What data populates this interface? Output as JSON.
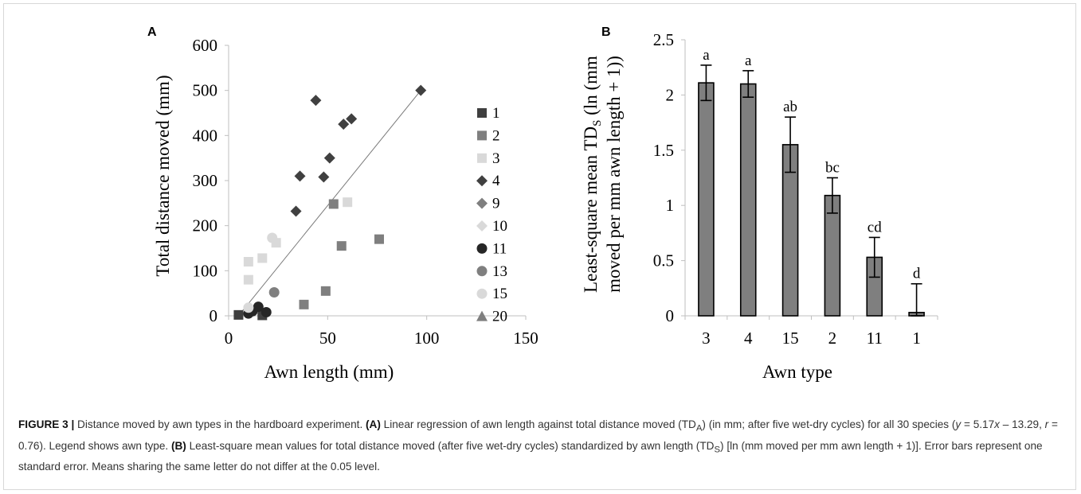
{
  "chart_data": [
    {
      "panel": "A",
      "type": "scatter",
      "xlabel": "Awn length (mm)",
      "ylabel": "Total distance moved (mm)",
      "xlim": [
        0,
        150
      ],
      "ylim": [
        0,
        600
      ],
      "xticks": [
        0,
        50,
        100,
        150
      ],
      "yticks": [
        0,
        100,
        200,
        300,
        400,
        500,
        600
      ],
      "grid": false,
      "legend_position": "right",
      "trendline": {
        "x": [
          5,
          97
        ],
        "y": [
          0,
          500
        ]
      },
      "series": [
        {
          "name": "1",
          "marker": "square",
          "color": "#3f3f3f",
          "points": [
            [
              5,
              2
            ],
            [
              17,
              1
            ]
          ]
        },
        {
          "name": "2",
          "marker": "square",
          "color": "#7f7f7f",
          "points": [
            [
              38,
              25
            ],
            [
              49,
              55
            ],
            [
              53,
              248
            ],
            [
              57,
              155
            ],
            [
              76,
              170
            ]
          ]
        },
        {
          "name": "3",
          "marker": "square",
          "color": "#d9d9d9",
          "points": [
            [
              10,
              80
            ],
            [
              10,
              120
            ],
            [
              17,
              128
            ],
            [
              24,
              162
            ],
            [
              60,
              252
            ]
          ]
        },
        {
          "name": "4",
          "marker": "diamond",
          "color": "#404040",
          "points": [
            [
              34,
              232
            ],
            [
              36,
              310
            ],
            [
              44,
              478
            ],
            [
              48,
              308
            ],
            [
              51,
              350
            ],
            [
              58,
              425
            ],
            [
              62,
              437
            ],
            [
              97,
              500
            ]
          ]
        },
        {
          "name": "9",
          "marker": "diamond",
          "color": "#7f7f7f",
          "points": []
        },
        {
          "name": "10",
          "marker": "diamond",
          "color": "#d9d9d9",
          "points": []
        },
        {
          "name": "11",
          "marker": "circle",
          "color": "#262626",
          "points": [
            [
              10,
              5
            ],
            [
              12,
              10
            ],
            [
              15,
              20
            ],
            [
              19,
              8
            ]
          ]
        },
        {
          "name": "13",
          "marker": "circle",
          "color": "#7f7f7f",
          "points": [
            [
              23,
              52
            ]
          ]
        },
        {
          "name": "15",
          "marker": "circle",
          "color": "#d9d9d9",
          "points": [
            [
              10,
              18
            ],
            [
              22,
              173
            ]
          ]
        },
        {
          "name": "20",
          "marker": "triangle",
          "color": "#7f7f7f",
          "points": []
        }
      ]
    },
    {
      "panel": "B",
      "type": "bar",
      "xlabel": "Awn type",
      "ylabel_line1": "Least-square mean TD",
      "ylabel_sub": "S",
      "ylabel_rest": " (ln (mm",
      "ylabel_line2": "moved per mm awn length + 1))",
      "ylim": [
        0,
        2.5
      ],
      "yticks": [
        0,
        0.5,
        1,
        1.5,
        2,
        2.5
      ],
      "grid": false,
      "bar_color": "#7f7f7f",
      "categories": [
        "3",
        "4",
        "15",
        "2",
        "11",
        "1"
      ],
      "values": [
        2.11,
        2.1,
        1.55,
        1.09,
        0.53,
        0.03
      ],
      "errors": [
        0.16,
        0.12,
        0.25,
        0.16,
        0.18,
        0.26
      ],
      "letters": [
        "a",
        "a",
        "ab",
        "bc",
        "cd",
        "d"
      ]
    }
  ],
  "panel_labels": {
    "a": "A",
    "b": "B"
  },
  "caption": {
    "label": "FIGURE 3 |",
    "s1": " Distance moved by awn types in the hardboard experiment. ",
    "a_label": "(A)",
    "s2": " Linear regression of awn length against total distance moved (TD",
    "sub_a": "A",
    "s3": ") (in mm; after five wet-dry cycles) for all 30 species (",
    "eq_y": "y",
    "s4": " = 5.17",
    "eq_x": "x",
    "s5": " – 13.29, ",
    "eq_r": "r",
    "s6": " = 0.76). Legend shows awn type. ",
    "b_label": "(B)",
    "s7": " Least-square mean values for total distance moved (after five wet-dry cycles) standardized by awn length (TD",
    "sub_s": "S",
    "s8": ") [ln (mm moved per mm awn length + 1)]. Error bars represent one standard error. Means sharing the same letter do not differ at the 0.05 level."
  }
}
